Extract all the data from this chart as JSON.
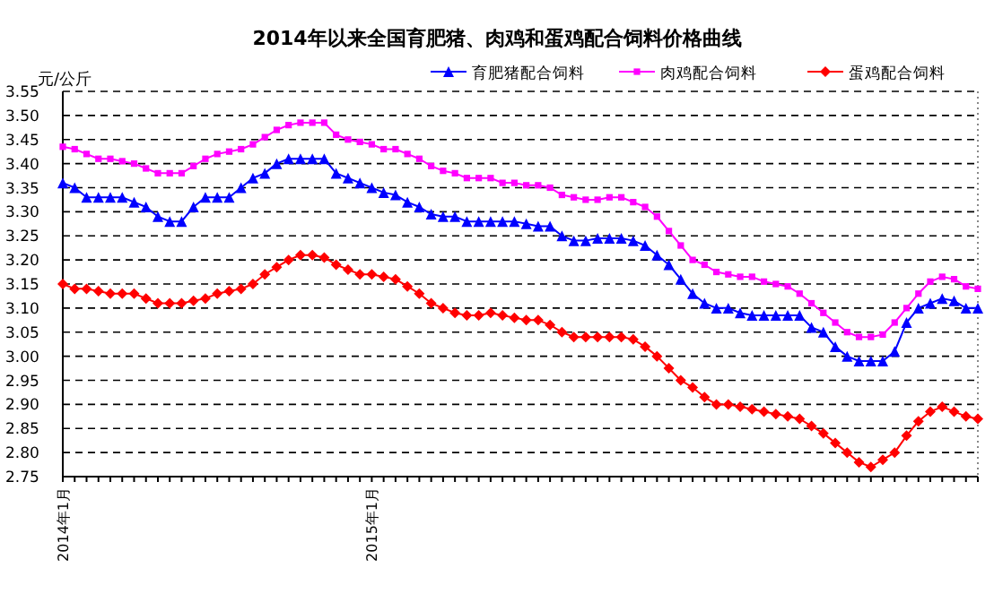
{
  "chart_data": {
    "type": "line",
    "title": "2014年以来全国育肥猪、肉鸡和蛋鸡配合饲料价格曲线",
    "ylabel": "元/公斤",
    "categories": [
      "2014年1月",
      null,
      null,
      null,
      null,
      null,
      null,
      null,
      null,
      null,
      null,
      null,
      null,
      null,
      null,
      null,
      null,
      null,
      null,
      null,
      null,
      null,
      null,
      null,
      null,
      null,
      "2015年1月",
      null,
      null,
      null,
      null,
      null,
      null,
      null,
      null,
      null,
      null,
      null,
      null,
      null,
      null,
      null,
      null,
      null,
      null,
      null,
      null,
      null,
      null,
      null,
      null,
      null,
      null,
      null,
      null,
      null,
      null,
      null,
      null,
      null,
      null,
      null,
      null,
      null,
      null,
      null,
      null,
      null,
      null,
      null,
      null,
      null,
      null,
      null,
      null,
      null,
      null,
      null
    ],
    "ylim": [
      2.75,
      3.55
    ],
    "yticks": [
      {
        "value": 2.75,
        "label": "2.75"
      },
      {
        "value": 2.8,
        "label": "2.80"
      },
      {
        "value": 2.85,
        "label": "2.85"
      },
      {
        "value": 2.9,
        "label": "2.90"
      },
      {
        "value": 2.95,
        "label": "2.95"
      },
      {
        "value": 3,
        "label": "3.00"
      },
      {
        "value": 3.05,
        "label": "3.05"
      },
      {
        "value": 3.1,
        "label": "3.10"
      },
      {
        "value": 3.15,
        "label": "3.15"
      },
      {
        "value": 3.2,
        "label": "3.20"
      },
      {
        "value": 3.25,
        "label": "3.25"
      },
      {
        "value": 3.3,
        "label": "3.30"
      },
      {
        "value": 3.35,
        "label": "3.35"
      },
      {
        "value": 3.4,
        "label": "3.40"
      },
      {
        "value": 3.45,
        "label": "3.45"
      },
      {
        "value": 3.5,
        "label": "3.50"
      },
      {
        "value": 3.55,
        "label": "3.55"
      }
    ],
    "grid": "y",
    "legend": "top right",
    "line_style": "solid",
    "series": [
      {
        "name": "育肥猪配合饲料",
        "color": "#0000ff",
        "marker": "triangle",
        "values": [
          3.36,
          3.35,
          3.33,
          3.33,
          3.33,
          3.33,
          3.32,
          3.31,
          3.29,
          3.28,
          3.28,
          3.31,
          3.33,
          3.33,
          3.33,
          3.35,
          3.37,
          3.38,
          3.4,
          3.41,
          3.41,
          3.41,
          3.41,
          3.38,
          3.37,
          3.36,
          3.35,
          3.34,
          3.335,
          3.32,
          3.31,
          3.295,
          3.29,
          3.29,
          3.28,
          3.28,
          3.28,
          3.28,
          3.28,
          3.275,
          3.27,
          3.27,
          3.25,
          3.24,
          3.24,
          3.245,
          3.245,
          3.245,
          3.24,
          3.23,
          3.21,
          3.19,
          3.16,
          3.13,
          3.11,
          3.1,
          3.1,
          3.09,
          3.085,
          3.085,
          3.085,
          3.085,
          3.085,
          3.06,
          3.05,
          3.02,
          3.0,
          2.99,
          2.99,
          2.99,
          3.01,
          3.07,
          3.1,
          3.11,
          3.12,
          3.115,
          3.1,
          3.1
        ]
      },
      {
        "name": "肉鸡配合饲料",
        "color": "#ff00ff",
        "marker": "square",
        "values": [
          3.435,
          3.43,
          3.42,
          3.41,
          3.41,
          3.405,
          3.4,
          3.39,
          3.38,
          3.38,
          3.38,
          3.395,
          3.41,
          3.42,
          3.425,
          3.43,
          3.44,
          3.455,
          3.47,
          3.48,
          3.485,
          3.485,
          3.485,
          3.46,
          3.45,
          3.445,
          3.44,
          3.43,
          3.43,
          3.42,
          3.41,
          3.395,
          3.385,
          3.38,
          3.37,
          3.37,
          3.37,
          3.36,
          3.36,
          3.355,
          3.355,
          3.35,
          3.335,
          3.33,
          3.325,
          3.325,
          3.33,
          3.33,
          3.32,
          3.31,
          3.29,
          3.26,
          3.23,
          3.2,
          3.19,
          3.175,
          3.17,
          3.165,
          3.165,
          3.155,
          3.15,
          3.145,
          3.13,
          3.11,
          3.09,
          3.07,
          3.05,
          3.04,
          3.04,
          3.045,
          3.07,
          3.1,
          3.13,
          3.155,
          3.165,
          3.16,
          3.145,
          3.14
        ]
      },
      {
        "name": "蛋鸡配合饲料",
        "color": "#ff0000",
        "marker": "diamond",
        "values": [
          3.15,
          3.14,
          3.14,
          3.135,
          3.13,
          3.13,
          3.13,
          3.12,
          3.11,
          3.11,
          3.11,
          3.115,
          3.12,
          3.13,
          3.135,
          3.14,
          3.15,
          3.17,
          3.185,
          3.2,
          3.21,
          3.21,
          3.205,
          3.19,
          3.18,
          3.17,
          3.17,
          3.165,
          3.16,
          3.145,
          3.13,
          3.11,
          3.1,
          3.09,
          3.085,
          3.085,
          3.09,
          3.085,
          3.08,
          3.075,
          3.075,
          3.065,
          3.05,
          3.04,
          3.04,
          3.04,
          3.04,
          3.04,
          3.035,
          3.02,
          3.0,
          2.975,
          2.95,
          2.935,
          2.915,
          2.9,
          2.9,
          2.895,
          2.89,
          2.885,
          2.88,
          2.875,
          2.87,
          2.855,
          2.84,
          2.82,
          2.8,
          2.78,
          2.77,
          2.785,
          2.8,
          2.835,
          2.865,
          2.885,
          2.895,
          2.885,
          2.875,
          2.87
        ]
      }
    ]
  }
}
